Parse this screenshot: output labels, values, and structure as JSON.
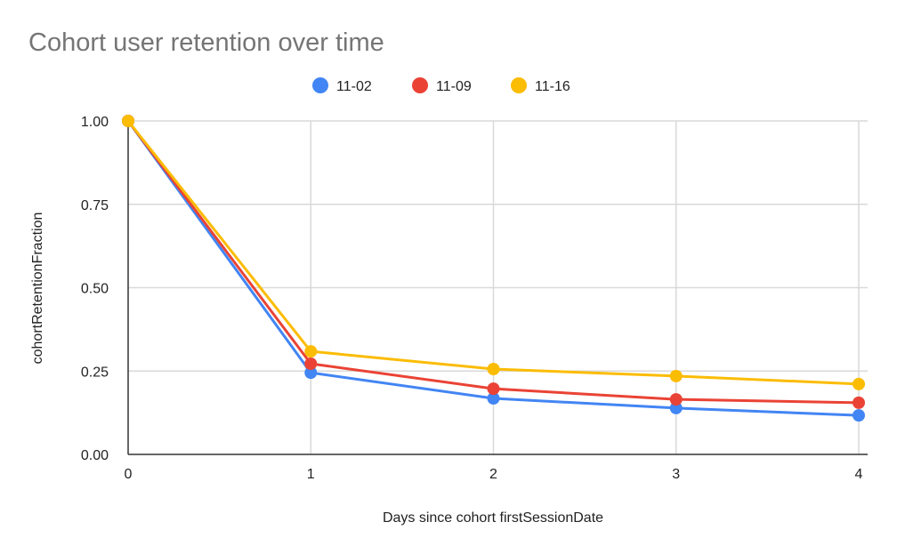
{
  "chart_data": {
    "type": "line",
    "title": "Cohort user retention over time",
    "xlabel": "Days since cohort firstSessionDate",
    "ylabel": "cohortRetentionFraction",
    "x": [
      0,
      1,
      2,
      3,
      4
    ],
    "x_ticks": [
      "0",
      "1",
      "2",
      "3",
      "4"
    ],
    "y_ticks": [
      "0.00",
      "0.25",
      "0.50",
      "0.75",
      "1.00"
    ],
    "xlim": [
      0,
      4
    ],
    "ylim": [
      0,
      1
    ],
    "grid": true,
    "legend_position": "top",
    "series": [
      {
        "name": "11-02",
        "color": "#4285F4",
        "values": [
          1.0,
          0.245,
          0.168,
          0.139,
          0.117
        ]
      },
      {
        "name": "11-09",
        "color": "#EA4335",
        "values": [
          1.0,
          0.272,
          0.197,
          0.165,
          0.155
        ]
      },
      {
        "name": "11-16",
        "color": "#FBBC04",
        "values": [
          1.0,
          0.309,
          0.256,
          0.235,
          0.211
        ]
      }
    ]
  }
}
